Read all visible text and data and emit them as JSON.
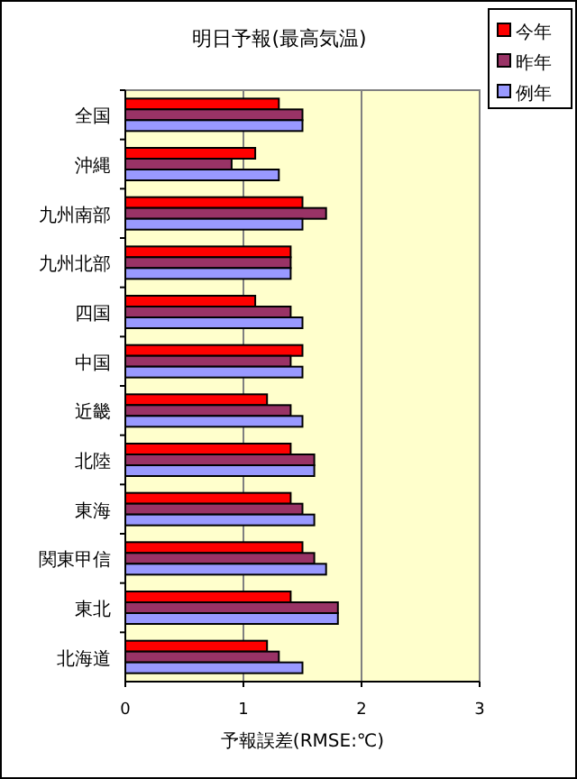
{
  "chart_data": {
    "type": "bar",
    "orientation": "horizontal",
    "title": "明日予報(最高気温)",
    "xlabel": "予報誤差(RMSE:℃)",
    "categories": [
      "全国",
      "沖縄",
      "九州南部",
      "九州北部",
      "四国",
      "中国",
      "近畿",
      "北陸",
      "東海",
      "関東甲信",
      "東北",
      "北海道"
    ],
    "series": [
      {
        "name": "今年",
        "color": "#ff0000",
        "values": [
          1.3,
          1.1,
          1.5,
          1.4,
          1.1,
          1.5,
          1.2,
          1.4,
          1.4,
          1.5,
          1.4,
          1.2
        ]
      },
      {
        "name": "昨年",
        "color": "#993366",
        "values": [
          1.5,
          0.9,
          1.7,
          1.4,
          1.4,
          1.4,
          1.4,
          1.6,
          1.5,
          1.6,
          1.8,
          1.3
        ]
      },
      {
        "name": "例年",
        "color": "#9999ff",
        "values": [
          1.5,
          1.3,
          1.5,
          1.4,
          1.5,
          1.5,
          1.5,
          1.6,
          1.6,
          1.7,
          1.8,
          1.5
        ]
      }
    ],
    "xlim": [
      0,
      3
    ],
    "xticks": [
      0,
      1,
      2,
      3
    ],
    "grid": "x",
    "legend": "top right"
  }
}
